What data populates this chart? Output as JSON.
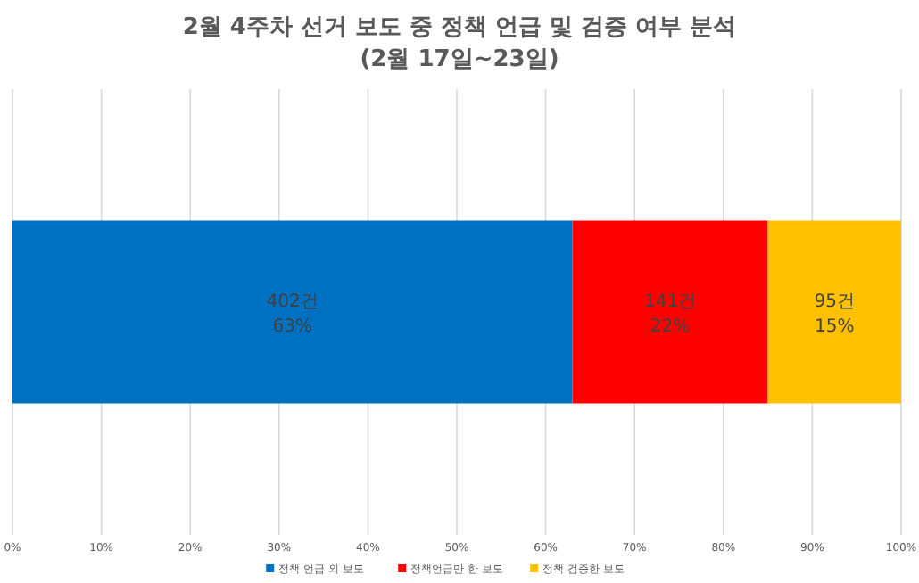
{
  "chart_data": {
    "type": "bar",
    "orientation": "horizontal",
    "stacked": true,
    "title": "2월 4주차 선거 보도 중 정책 언급 및 검증 여부 분석",
    "subtitle": "(2월 17일~23일)",
    "categories": [
      null
    ],
    "series": [
      {
        "name": "정책 언급 외 보도",
        "color": "#0070c0",
        "values": [
          63
        ],
        "value_labels": [
          "402건\n63%"
        ]
      },
      {
        "name": "정책언급만 한 보도",
        "color": "#ff0000",
        "values": [
          22
        ],
        "value_labels": [
          "141건\n22%"
        ]
      },
      {
        "name": "정책 검증한 보도",
        "color": "#ffc000",
        "values": [
          15
        ],
        "value_labels": [
          "95건\n15%"
        ]
      }
    ],
    "xlim": [
      0,
      100
    ],
    "xticks": [
      {
        "value": 0,
        "label": "0%"
      },
      {
        "value": 10,
        "label": "10%"
      },
      {
        "value": 20,
        "label": "20%"
      },
      {
        "value": 30,
        "label": "30%"
      },
      {
        "value": 40,
        "label": "40%"
      },
      {
        "value": 50,
        "label": "50%"
      },
      {
        "value": 60,
        "label": "60%"
      },
      {
        "value": 70,
        "label": "70%"
      },
      {
        "value": 80,
        "label": "80%"
      },
      {
        "value": 90,
        "label": "90%"
      },
      {
        "value": 100,
        "label": "100%"
      }
    ],
    "grid": "x",
    "legend": "bottom"
  }
}
